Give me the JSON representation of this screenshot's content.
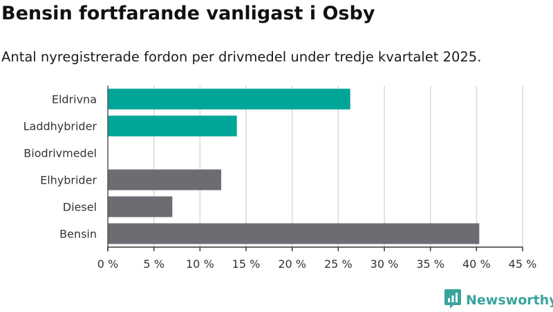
{
  "header": {
    "title": "Bensin fortfarande vanligast i Osby",
    "subtitle": "Antal nyregistrerade fordon per drivmedel under tredje kvartalet 2025."
  },
  "brand": {
    "name": "Newsworthy",
    "icon": "newsworthy-logo-icon"
  },
  "colors": {
    "highlight": "#00a59a",
    "default": "#6d6c72",
    "grid": "#d9d9d9",
    "axis": "#333333"
  },
  "chart_data": {
    "type": "bar",
    "orientation": "horizontal",
    "categories": [
      "Eldrivna",
      "Laddhybrider",
      "Biodrivmedel",
      "Elhybrider",
      "Diesel",
      "Bensin"
    ],
    "values": [
      26.3,
      14.0,
      0,
      12.3,
      7.0,
      40.3
    ],
    "unit": "%",
    "bar_colors": [
      "#00a59a",
      "#00a59a",
      "#00a59a",
      "#6d6c72",
      "#6d6c72",
      "#6d6c72"
    ],
    "xlim": [
      0,
      45
    ],
    "xticks": [
      0,
      5,
      10,
      15,
      20,
      25,
      30,
      35,
      40,
      45
    ],
    "xtick_labels": [
      "0 %",
      "5 %",
      "10 %",
      "15 %",
      "20 %",
      "25 %",
      "30 %",
      "35 %",
      "40 %",
      "45 %"
    ],
    "grid": true
  }
}
